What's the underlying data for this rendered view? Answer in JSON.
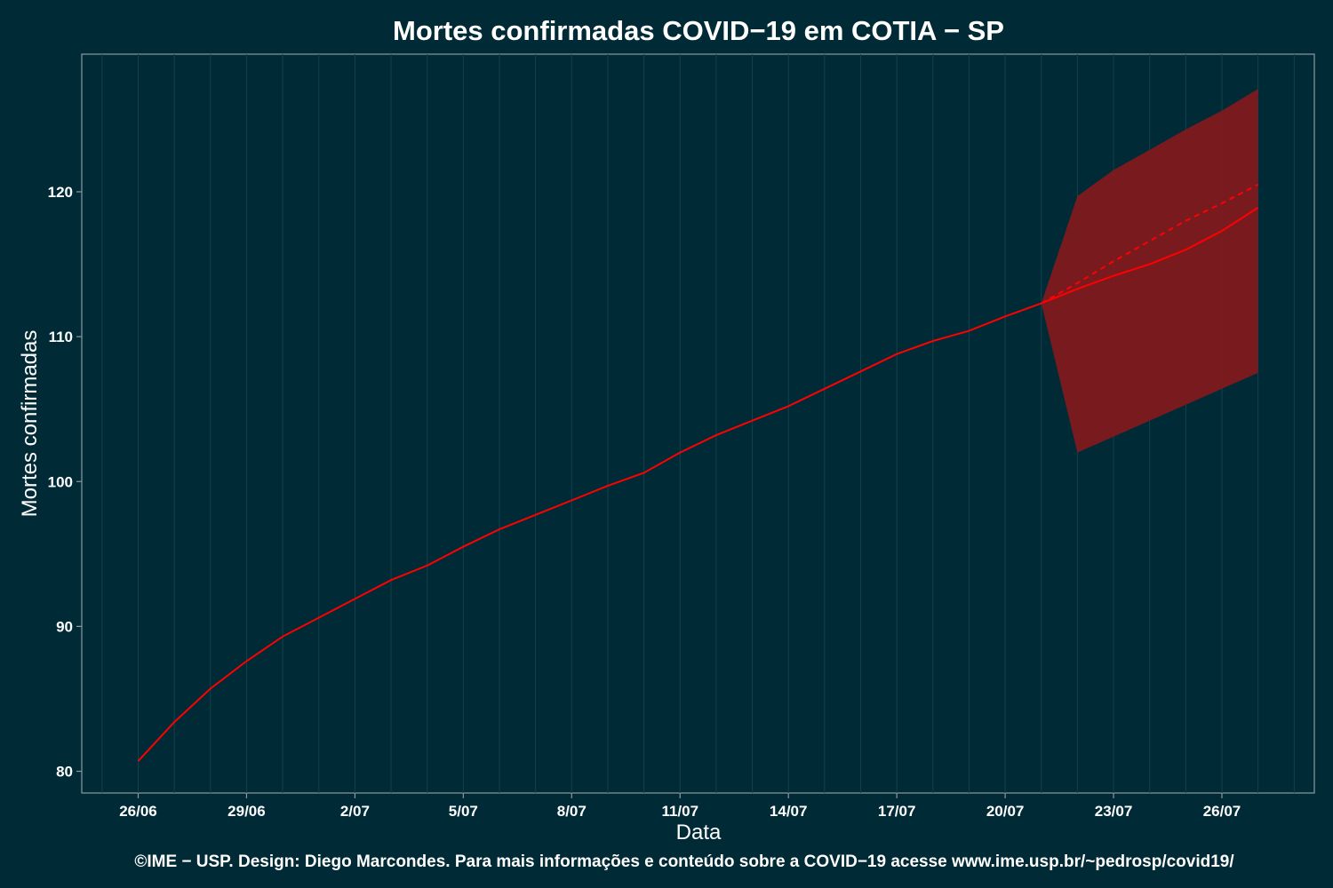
{
  "chart_data": {
    "type": "line",
    "title": "Mortes confirmadas COVID−19 em COTIA − SP",
    "xlabel": "Data",
    "ylabel": "Mortes confirmadas",
    "caption": "©IME − USP. Design: Diego Marcondes. Para mais informações e conteúdo sobre a COVID−19 acesse www.ime.usp.br/~pedrosp/covid19/",
    "x_tick_labels": [
      "26/06",
      "29/06",
      "2/07",
      "5/07",
      "8/07",
      "11/07",
      "14/07",
      "17/07",
      "20/07",
      "23/07",
      "26/07"
    ],
    "y_ticks": [
      80,
      90,
      100,
      110,
      120
    ],
    "ylim": [
      78.5,
      129.5
    ],
    "x_start_label": "26/06",
    "colors": {
      "background": "#002b36",
      "line": "#ff0000",
      "band": "#7f1a1d",
      "grid": "#12414d",
      "frame": "#8a9aa0"
    },
    "series": [
      {
        "role": "observed",
        "x": [
          "26/06",
          "27/06",
          "28/06",
          "29/06",
          "30/06",
          "1/07",
          "2/07",
          "3/07",
          "4/07",
          "5/07",
          "6/07",
          "7/07",
          "8/07",
          "9/07",
          "10/07",
          "11/07",
          "12/07",
          "13/07",
          "14/07",
          "15/07",
          "16/07",
          "17/07",
          "18/07",
          "19/07",
          "20/07",
          "21/07"
        ],
        "values": [
          80.7,
          83.4,
          85.7,
          87.6,
          89.3,
          90.6,
          91.9,
          93.2,
          94.2,
          95.5,
          96.7,
          97.7,
          98.7,
          99.7,
          100.6,
          102.0,
          103.2,
          104.2,
          105.2,
          106.4,
          107.6,
          108.8,
          109.7,
          110.4,
          111.4,
          112.3
        ]
      },
      {
        "role": "forecast",
        "x": [
          "21/07",
          "22/07",
          "23/07",
          "24/07",
          "25/07",
          "26/07",
          "27/07"
        ],
        "values": [
          112.3,
          113.3,
          114.2,
          115.0,
          116.0,
          117.3,
          118.9
        ]
      },
      {
        "role": "forecast-alternative",
        "style": "dashed",
        "x": [
          "21/07",
          "22/07",
          "23/07",
          "24/07",
          "25/07",
          "26/07",
          "27/07"
        ],
        "values": [
          112.3,
          113.7,
          115.2,
          116.6,
          118.0,
          119.2,
          120.5
        ]
      }
    ],
    "band": {
      "x": [
        "21/07",
        "22/07",
        "23/07",
        "24/07",
        "25/07",
        "26/07",
        "27/07"
      ],
      "lower": [
        112.3,
        102.0,
        103.1,
        104.2,
        105.3,
        106.4,
        107.5
      ],
      "upper": [
        112.3,
        119.7,
        121.5,
        122.9,
        124.3,
        125.6,
        127.1
      ]
    },
    "grid": true
  }
}
